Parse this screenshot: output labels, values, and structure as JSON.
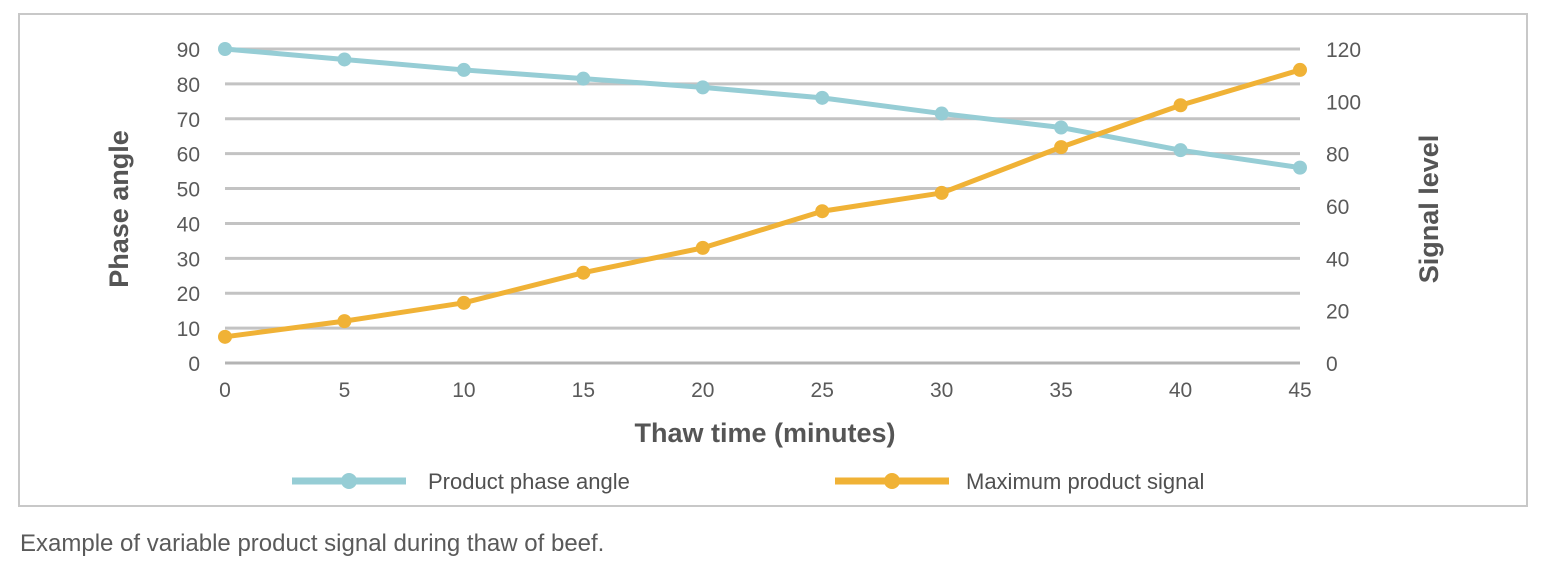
{
  "chart_data": {
    "type": "line",
    "x": [
      0,
      5,
      10,
      15,
      20,
      25,
      30,
      35,
      40,
      45
    ],
    "xlabel": "Thaw time (minutes)",
    "ylabel": "Phase angle",
    "y2label": "Signal level",
    "xlim": [
      0,
      45
    ],
    "ylim": [
      0,
      90
    ],
    "y2lim": [
      0,
      120
    ],
    "x_ticks": [
      "0",
      "5",
      "10",
      "15",
      "20",
      "25",
      "30",
      "35",
      "40",
      "45"
    ],
    "y_ticks": [
      "0",
      "10",
      "20",
      "30",
      "40",
      "50",
      "60",
      "70",
      "80",
      "90"
    ],
    "y2_ticks": [
      "0",
      "20",
      "40",
      "60",
      "80",
      "100",
      "120"
    ],
    "grid": true,
    "legend_position": "bottom",
    "series": [
      {
        "name": "Product phase angle",
        "axis": "left",
        "color": "#96cdd5",
        "values": [
          90,
          87,
          84,
          81.5,
          79,
          76,
          71.5,
          67.5,
          61,
          56
        ]
      },
      {
        "name": "Maximum product signal",
        "axis": "right",
        "color": "#f0b236",
        "values": [
          10,
          16,
          23,
          34.5,
          44,
          58,
          65,
          82.5,
          98.5,
          112
        ]
      }
    ]
  },
  "caption": "Example of variable product signal during thaw of beef."
}
